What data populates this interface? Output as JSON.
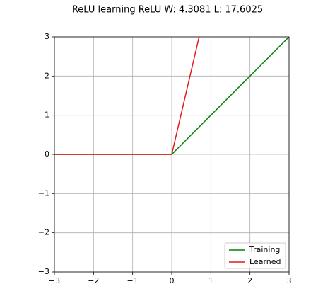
{
  "chart_data": {
    "type": "line",
    "title": "ReLU learning ReLU W: 4.3081 L: 17.6025",
    "series": [
      {
        "name": "Training",
        "color": "#008000",
        "x": [
          -3,
          0,
          3
        ],
        "values": [
          0,
          0,
          3
        ]
      },
      {
        "name": "Learned",
        "color": "#e31a1c",
        "x": [
          -3,
          0,
          0.7
        ],
        "values": [
          0,
          0,
          3
        ]
      }
    ],
    "xlim": [
      -3,
      3
    ],
    "ylim": [
      -3,
      3
    ],
    "xticks": [
      {
        "value": -3,
        "label": "−3"
      },
      {
        "value": -2,
        "label": "−2"
      },
      {
        "value": -1,
        "label": "−1"
      },
      0,
      1,
      2,
      3
    ],
    "yticks": [
      {
        "value": -3,
        "label": "−3"
      },
      {
        "value": -2,
        "label": "−2"
      },
      {
        "value": -1,
        "label": "−1"
      },
      0,
      1,
      2,
      3
    ],
    "grid": true,
    "legend": "lower right"
  }
}
